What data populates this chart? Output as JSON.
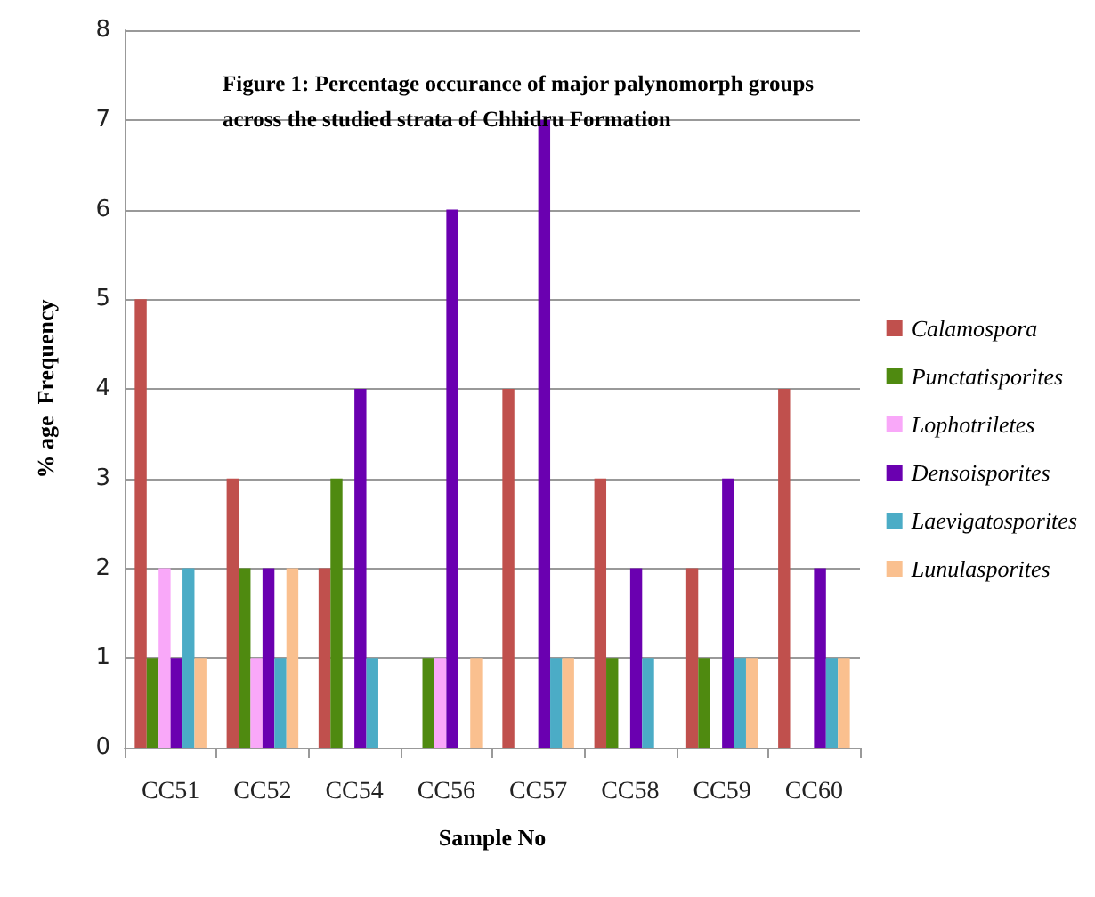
{
  "chart_data": {
    "type": "bar",
    "title": "Figure 1: Percentage occurance of major palynomorph groups across the studied strata of Chhidru Formation",
    "xlabel": "Sample No",
    "ylabel": "% age  Frequency",
    "categories": [
      "CC51",
      "CC52",
      "CC54",
      "CC56",
      "CC57",
      "CC58",
      "CC59",
      "CC60"
    ],
    "series": [
      {
        "name": "Calamospora",
        "color": "#c0504d",
        "values": [
          5,
          3,
          2,
          0,
          4,
          3,
          2,
          4
        ]
      },
      {
        "name": "Punctatisporites",
        "color": "#4f8a10",
        "values": [
          1,
          2,
          3,
          1,
          0,
          1,
          1,
          0
        ]
      },
      {
        "name": "Lophotriletes",
        "color": "#f9a8f9",
        "values": [
          2,
          1,
          0,
          1,
          0,
          0,
          0,
          0
        ]
      },
      {
        "name": "Densoisporites",
        "color": "#6a00b0",
        "values": [
          1,
          2,
          4,
          6,
          7,
          2,
          3,
          2
        ]
      },
      {
        "name": "Laevigatosporites",
        "color": "#4bacc6",
        "values": [
          2,
          1,
          1,
          0,
          1,
          1,
          1,
          1
        ]
      },
      {
        "name": "Lunulasporites",
        "color": "#fac08f",
        "values": [
          1,
          2,
          0,
          1,
          1,
          0,
          1,
          1
        ]
      }
    ],
    "ylim": [
      0,
      8
    ],
    "yticks": [
      0,
      1,
      2,
      3,
      4,
      5,
      6,
      7,
      8
    ],
    "grid": "y",
    "legend": "right"
  }
}
